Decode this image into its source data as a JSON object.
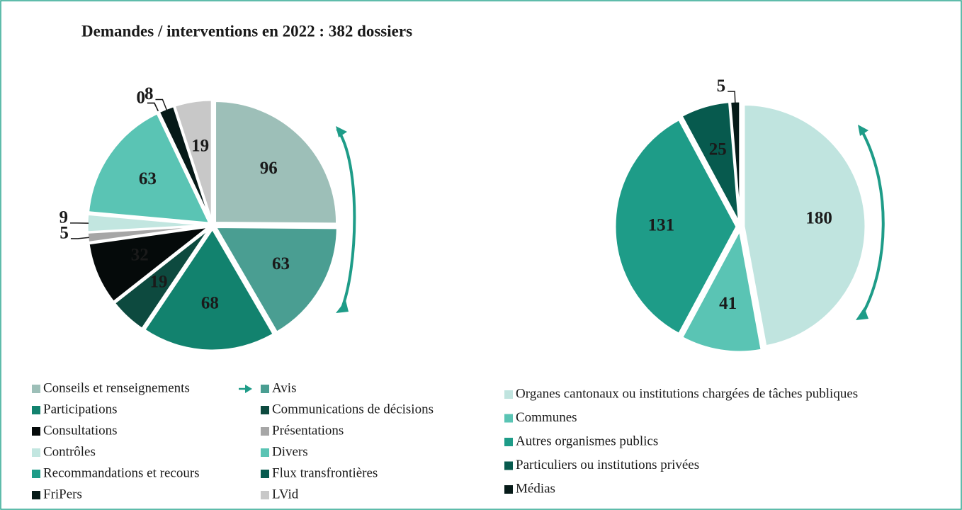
{
  "chart_data": [
    {
      "type": "pie",
      "title": "Demandes / interventions en 2022 : 382 dossiers",
      "categories": [
        "Conseils et renseignements",
        "Avis",
        "Participations",
        "Communications de décisions",
        "Consultations",
        "Présentations",
        "Contrôles",
        "Divers",
        "Recommandations et recours",
        "Flux transfrontières",
        "FriPers",
        "LVid"
      ],
      "values": [
        96,
        63,
        68,
        19,
        32,
        5,
        9,
        63,
        0,
        0,
        8,
        19
      ],
      "colors": [
        "#9dbfb8",
        "#4a9e92",
        "#12826e",
        "#0d4a3f",
        "#050a0a",
        "#a6a6a6",
        "#c2e6e0",
        "#5ac4b4",
        "#1e9c88",
        "#075a4e",
        "#061a18",
        "#c8c8c8"
      ]
    },
    {
      "type": "pie",
      "categories": [
        "Organes cantonaux ou institutions chargées de tâches publiques",
        "Communes",
        "Autres organismes publics",
        "Particuliers ou institutions privées",
        "Médias"
      ],
      "values": [
        180,
        41,
        131,
        25,
        5
      ],
      "colors": [
        "#c0e4df",
        "#5ac4b4",
        "#1e9c88",
        "#075a4e",
        "#061a18"
      ]
    }
  ]
}
